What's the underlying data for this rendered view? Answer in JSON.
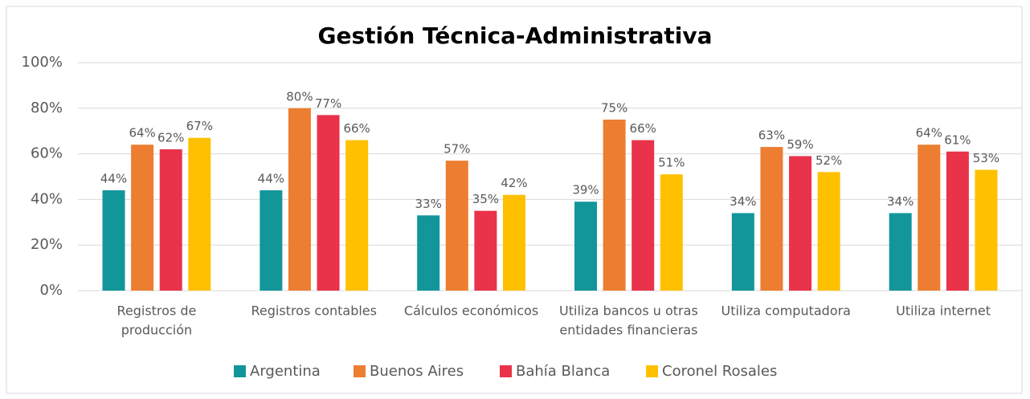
{
  "chart_data": {
    "type": "bar",
    "title": "Gestión Técnica-Administrativa",
    "categories": [
      [
        "Registros de",
        "producción"
      ],
      [
        "Registros contables"
      ],
      [
        "Cálculos económicos"
      ],
      [
        "Utiliza bancos u otras",
        "entidades financieras"
      ],
      [
        "Utiliza computadora"
      ],
      [
        "Utiliza internet"
      ]
    ],
    "series": [
      {
        "name": "Argentina",
        "color": "#12969a",
        "values": [
          44,
          44,
          33,
          39,
          34,
          34
        ],
        "value_labels": [
          "44%",
          "44%",
          "33%",
          "39%",
          "34%",
          "34%"
        ]
      },
      {
        "name": "Buenos Aires",
        "color": "#ed7d31",
        "values": [
          64,
          80,
          57,
          75,
          63,
          64
        ],
        "value_labels": [
          "64%",
          "80%",
          "57%",
          "75%",
          "63%",
          "64%"
        ]
      },
      {
        "name": "Bahía Blanca",
        "color": "#e8334a",
        "values": [
          62,
          77,
          35,
          66,
          59,
          61
        ],
        "value_labels": [
          "62%",
          "77%",
          "35%",
          "66%",
          "59%",
          "61%"
        ]
      },
      {
        "name": "Coronel Rosales",
        "color": "#ffc000",
        "values": [
          67,
          66,
          42,
          51,
          52,
          53
        ],
        "value_labels": [
          "67%",
          "66%",
          "42%",
          "51%",
          "52%",
          "53%"
        ]
      }
    ],
    "ylim": [
      0,
      100
    ],
    "yticks": [
      {
        "value": 0,
        "label": "0%"
      },
      {
        "value": 20,
        "label": "20%"
      },
      {
        "value": 40,
        "label": "40%"
      },
      {
        "value": 60,
        "label": "60%"
      },
      {
        "value": 80,
        "label": "80%"
      },
      {
        "value": 100,
        "label": "100%"
      }
    ],
    "grid": true,
    "legend": "bottom"
  }
}
